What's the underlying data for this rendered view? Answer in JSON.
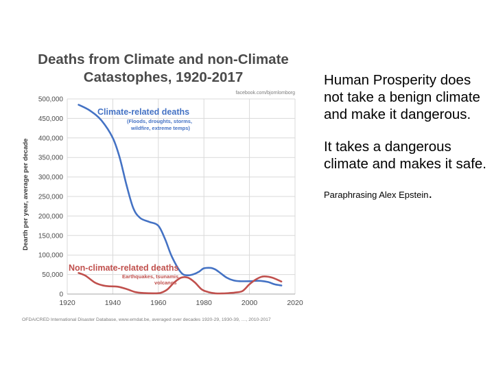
{
  "slide": {
    "statement_1": "Human Prosperity does not take a benign climate and make it dangerous.",
    "statement_2": "It takes a dangerous climate and makes it safe.",
    "credit": "Paraphrasing Alex Epstein",
    "credit_dot": "."
  },
  "chart_data": {
    "type": "line",
    "title_line1": "Deaths from Climate and non-Climate",
    "title_line2": "Catastophes, 1920-2017",
    "watermark": "facebook.com/bjornlomborg",
    "ylabel": "Dearth per year, average per decade",
    "xlabel": "",
    "xlim": [
      1920,
      2020
    ],
    "ylim": [
      0,
      500000
    ],
    "x_ticks": [
      1920,
      1940,
      1960,
      1980,
      2000,
      2020
    ],
    "x_tick_labels": [
      "1920",
      "1940",
      "1960",
      "1980",
      "2000",
      "2020"
    ],
    "y_ticks": [
      0,
      50000,
      100000,
      150000,
      200000,
      250000,
      300000,
      350000,
      400000,
      450000,
      500000
    ],
    "y_tick_labels": [
      "0",
      "50,000",
      "100,000",
      "150,000",
      "200,000",
      "250,000",
      "300,000",
      "350,000",
      "400,000",
      "450,000",
      "500,000"
    ],
    "grid": true,
    "source": "OFDA/CRED International Disaster Database, www.emdat.be, averaged over decades 1920-29, 1930-39, …, 2010-2017",
    "series": [
      {
        "name": "Climate-related deaths",
        "subtitle_line1": "(Floods, droughts, storms,",
        "subtitle_line2": "wildfire, extreme temps)",
        "color": "#4472c4",
        "x": [
          1925,
          1930,
          1935,
          1940,
          1943,
          1946,
          1949,
          1952,
          1956,
          1960,
          1963,
          1966,
          1970,
          1973,
          1976,
          1978,
          1980,
          1983,
          1985,
          1987,
          1990,
          1993,
          1996,
          2000,
          2004,
          2008,
          2011,
          2014
        ],
        "y": [
          485000,
          470000,
          445000,
          400000,
          350000,
          280000,
          220000,
          195000,
          185000,
          175000,
          140000,
          95000,
          55000,
          48000,
          52000,
          58000,
          66000,
          67000,
          63000,
          55000,
          42000,
          35000,
          33000,
          33000,
          34000,
          31000,
          25000,
          22000
        ]
      },
      {
        "name": "Non-climate-related deaths",
        "subtitle_line1": "Earthquakes, tsunamis,",
        "subtitle_line2": "volcanos",
        "color": "#c0504d",
        "x": [
          1925,
          1928,
          1932,
          1935,
          1938,
          1942,
          1946,
          1950,
          1954,
          1958,
          1961,
          1964,
          1967,
          1970,
          1973,
          1976,
          1979,
          1982,
          1985,
          1988,
          1991,
          1994,
          1997,
          2000,
          2003,
          2006,
          2010,
          2014
        ],
        "y": [
          54000,
          47000,
          30000,
          23000,
          20000,
          19000,
          13000,
          5000,
          2500,
          2000,
          3000,
          12000,
          30000,
          42000,
          42000,
          30000,
          12000,
          5000,
          2000,
          1500,
          2500,
          4000,
          8000,
          25000,
          38000,
          45000,
          42000,
          32000
        ]
      }
    ]
  }
}
